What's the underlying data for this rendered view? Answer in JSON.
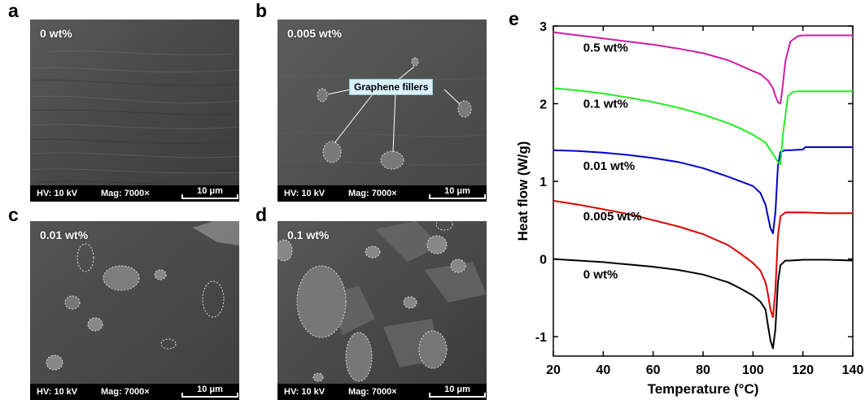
{
  "panels": {
    "a": {
      "letter": "a",
      "label": "0 wt%",
      "hv": "HV: 10 kV",
      "mag": "Mag: 7000×",
      "scale": "10 μm"
    },
    "b": {
      "letter": "b",
      "label": "0.005 wt%",
      "hv": "HV: 10 kV",
      "mag": "Mag: 7000×",
      "scale": "10 μm",
      "callout": "Graphene fillers"
    },
    "c": {
      "letter": "c",
      "label": "0.01 wt%",
      "hv": "HV: 10 kV",
      "mag": "Mag: 7000×",
      "scale": "10 μm"
    },
    "d": {
      "letter": "d",
      "label": "0.1 wt%",
      "hv": "HV: 10 kV",
      "mag": "Mag: 7000×",
      "scale": "10 μm"
    },
    "e": {
      "letter": "e"
    }
  },
  "chart_data": {
    "type": "line",
    "title": "",
    "xlabel": "Temperature (°C)",
    "ylabel": "Heat flow (W/g)",
    "xlim": [
      20,
      140
    ],
    "ylim": [
      -1.25,
      3
    ],
    "xticks": [
      20,
      40,
      60,
      80,
      100,
      120,
      140
    ],
    "yticks": [
      -1,
      0,
      1,
      2,
      3
    ],
    "grid": false,
    "series": [
      {
        "name": "0 wt%",
        "color": "#000000",
        "x": [
          20,
          30,
          40,
          50,
          60,
          70,
          80,
          90,
          95,
          100,
          103,
          105,
          106,
          107,
          108,
          109,
          110,
          111,
          113,
          115,
          120,
          130,
          140
        ],
        "y": [
          0.0,
          -0.02,
          -0.04,
          -0.07,
          -0.1,
          -0.14,
          -0.2,
          -0.3,
          -0.38,
          -0.47,
          -0.55,
          -0.65,
          -0.85,
          -1.05,
          -1.15,
          -0.9,
          -0.3,
          -0.08,
          -0.02,
          -0.02,
          -0.01,
          -0.01,
          -0.02
        ]
      },
      {
        "name": "0.005 wt%",
        "color": "#e00000",
        "x": [
          20,
          30,
          40,
          50,
          60,
          70,
          80,
          90,
          95,
          100,
          103,
          105,
          106,
          107,
          108,
          109,
          110,
          111,
          113,
          115,
          120,
          130,
          140
        ],
        "y": [
          0.75,
          0.7,
          0.64,
          0.58,
          0.5,
          0.42,
          0.32,
          0.18,
          0.07,
          -0.05,
          -0.15,
          -0.3,
          -0.45,
          -0.65,
          -0.75,
          -0.4,
          0.3,
          0.55,
          0.6,
          0.6,
          0.6,
          0.59,
          0.59
        ]
      },
      {
        "name": "0.01 wt%",
        "color": "#0000cc",
        "x": [
          20,
          30,
          40,
          50,
          60,
          70,
          80,
          90,
          95,
          100,
          103,
          105,
          106,
          107,
          108,
          109,
          110,
          111,
          113,
          115,
          120,
          121,
          130,
          140
        ],
        "y": [
          1.4,
          1.39,
          1.37,
          1.34,
          1.3,
          1.25,
          1.17,
          1.06,
          1.0,
          0.94,
          0.85,
          0.7,
          0.55,
          0.4,
          0.33,
          0.6,
          1.2,
          1.38,
          1.4,
          1.4,
          1.41,
          1.44,
          1.44,
          1.44
        ]
      },
      {
        "name": "0.1 wt%",
        "color": "#22ee22",
        "x": [
          20,
          30,
          40,
          50,
          60,
          70,
          80,
          90,
          95,
          100,
          105,
          108,
          110,
          111,
          112,
          114,
          116,
          118,
          120,
          130,
          140
        ],
        "y": [
          2.2,
          2.17,
          2.13,
          2.08,
          2.02,
          1.95,
          1.86,
          1.75,
          1.68,
          1.6,
          1.5,
          1.35,
          1.25,
          1.22,
          1.6,
          2.1,
          2.15,
          2.16,
          2.16,
          2.16,
          2.16
        ]
      },
      {
        "name": "0.5 wt%",
        "color": "#cc1fa0",
        "x": [
          20,
          30,
          40,
          50,
          60,
          70,
          80,
          90,
          95,
          100,
          103,
          106,
          108,
          109,
          110,
          111,
          112,
          113,
          115,
          118,
          120,
          125,
          130,
          140
        ],
        "y": [
          2.92,
          2.88,
          2.84,
          2.8,
          2.76,
          2.71,
          2.65,
          2.56,
          2.49,
          2.42,
          2.38,
          2.3,
          2.2,
          2.1,
          2.02,
          2.0,
          2.25,
          2.55,
          2.8,
          2.87,
          2.88,
          2.88,
          2.88,
          2.88
        ]
      }
    ]
  }
}
